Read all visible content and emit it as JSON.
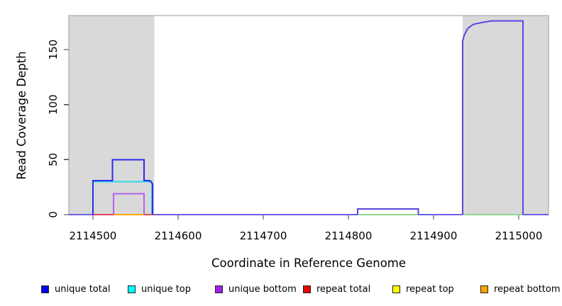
{
  "figure": {
    "background": "#ffffff"
  },
  "chart_data": {
    "type": "line",
    "title": "",
    "xlabel": "Coordinate in Reference Genome",
    "ylabel": "Read Coverage Depth",
    "xlim": [
      2114471.7,
      2115035
    ],
    "ylim": [
      0,
      180.9
    ],
    "xticks": [
      2114500,
      2114600,
      2114700,
      2114800,
      2114900,
      2115000
    ],
    "yticks": [
      0,
      50,
      100,
      150
    ],
    "grid": false,
    "colors": {
      "box": "#9b9b9b",
      "axis": "#404040",
      "tick": "#404040",
      "text": "#000000",
      "shade": "#d9d9d9"
    },
    "shaded_regions": [
      {
        "name": "repeat-region-left",
        "x0": 2114471.7,
        "x1": 2114572,
        "color": "#d9d9d9"
      },
      {
        "name": "repeat-region-right",
        "x0": 2114934,
        "x1": 2115035,
        "color": "#d9d9d9"
      }
    ],
    "lines": [
      {
        "name": "baseline-unique-zero",
        "color": "#6f5fe8",
        "width": 2,
        "points": [
          [
            2114471.7,
            0
          ],
          [
            2115035,
            0
          ]
        ]
      },
      {
        "name": "repeat-total-baseline",
        "color": "#e04563",
        "width": 2,
        "points": [
          [
            2114500,
            0
          ],
          [
            2114572,
            0
          ]
        ]
      },
      {
        "name": "repeat-bottom-baseline",
        "color": "#ffa500",
        "width": 2,
        "points": [
          [
            2114524,
            0
          ],
          [
            2114560,
            0
          ]
        ]
      },
      {
        "name": "overlap-baseline-green-mid",
        "color": "#8fd48f",
        "width": 2,
        "points": [
          [
            2114811,
            0
          ],
          [
            2114882,
            0
          ]
        ]
      },
      {
        "name": "overlap-baseline-green-right",
        "color": "#8fd48f",
        "width": 2,
        "points": [
          [
            2114934,
            0
          ],
          [
            2115005,
            0
          ]
        ]
      },
      {
        "name": "unique-top-left-peak",
        "color": "#2fd8e8",
        "width": 2,
        "points": [
          [
            2114500,
            0
          ],
          [
            2114500,
            30
          ],
          [
            2114569,
            30
          ],
          [
            2114569,
            0
          ]
        ]
      },
      {
        "name": "unique-bottom-left-peak",
        "color": "#b763ea",
        "width": 2,
        "points": [
          [
            2114524,
            0
          ],
          [
            2114524,
            19
          ],
          [
            2114560,
            19
          ],
          [
            2114560,
            0
          ]
        ]
      },
      {
        "name": "unique-total-left-peak",
        "color": "#2b2bf0",
        "width": 2,
        "points": [
          [
            2114500,
            0
          ],
          [
            2114500,
            31
          ],
          [
            2114523,
            31
          ],
          [
            2114523,
            50
          ],
          [
            2114560,
            50
          ],
          [
            2114560,
            31
          ],
          [
            2114567,
            31
          ],
          [
            2114568,
            30
          ],
          [
            2114569,
            29
          ],
          [
            2114570,
            28
          ],
          [
            2114570,
            0
          ]
        ]
      },
      {
        "name": "unique-mid-bump",
        "color": "#5a46e2",
        "width": 2,
        "points": [
          [
            2114811,
            0
          ],
          [
            2114811,
            5
          ],
          [
            2114882,
            5
          ],
          [
            2114882,
            0
          ]
        ]
      },
      {
        "name": "unique-right-peak",
        "color": "#5a46e2",
        "width": 2,
        "points": [
          [
            2114934,
            0
          ],
          [
            2114934,
            157
          ],
          [
            2114935,
            160
          ],
          [
            2114936,
            163
          ],
          [
            2114938,
            166
          ],
          [
            2114940,
            169
          ],
          [
            2114943,
            171
          ],
          [
            2114947,
            173
          ],
          [
            2114953,
            174
          ],
          [
            2114960,
            175
          ],
          [
            2114968,
            176
          ],
          [
            2115005,
            176
          ],
          [
            2115005,
            0
          ]
        ]
      }
    ],
    "legend": {
      "position": "bottom",
      "items": [
        {
          "label": "unique total",
          "color": "#0000ee"
        },
        {
          "label": "unique top",
          "color": "#00ffff"
        },
        {
          "label": "unique bottom",
          "color": "#a020f0"
        },
        {
          "label": "repeat total",
          "color": "#ee0000"
        },
        {
          "label": "repeat top",
          "color": "#ffff00"
        },
        {
          "label": "repeat bottom",
          "color": "#ffa500"
        }
      ]
    }
  }
}
